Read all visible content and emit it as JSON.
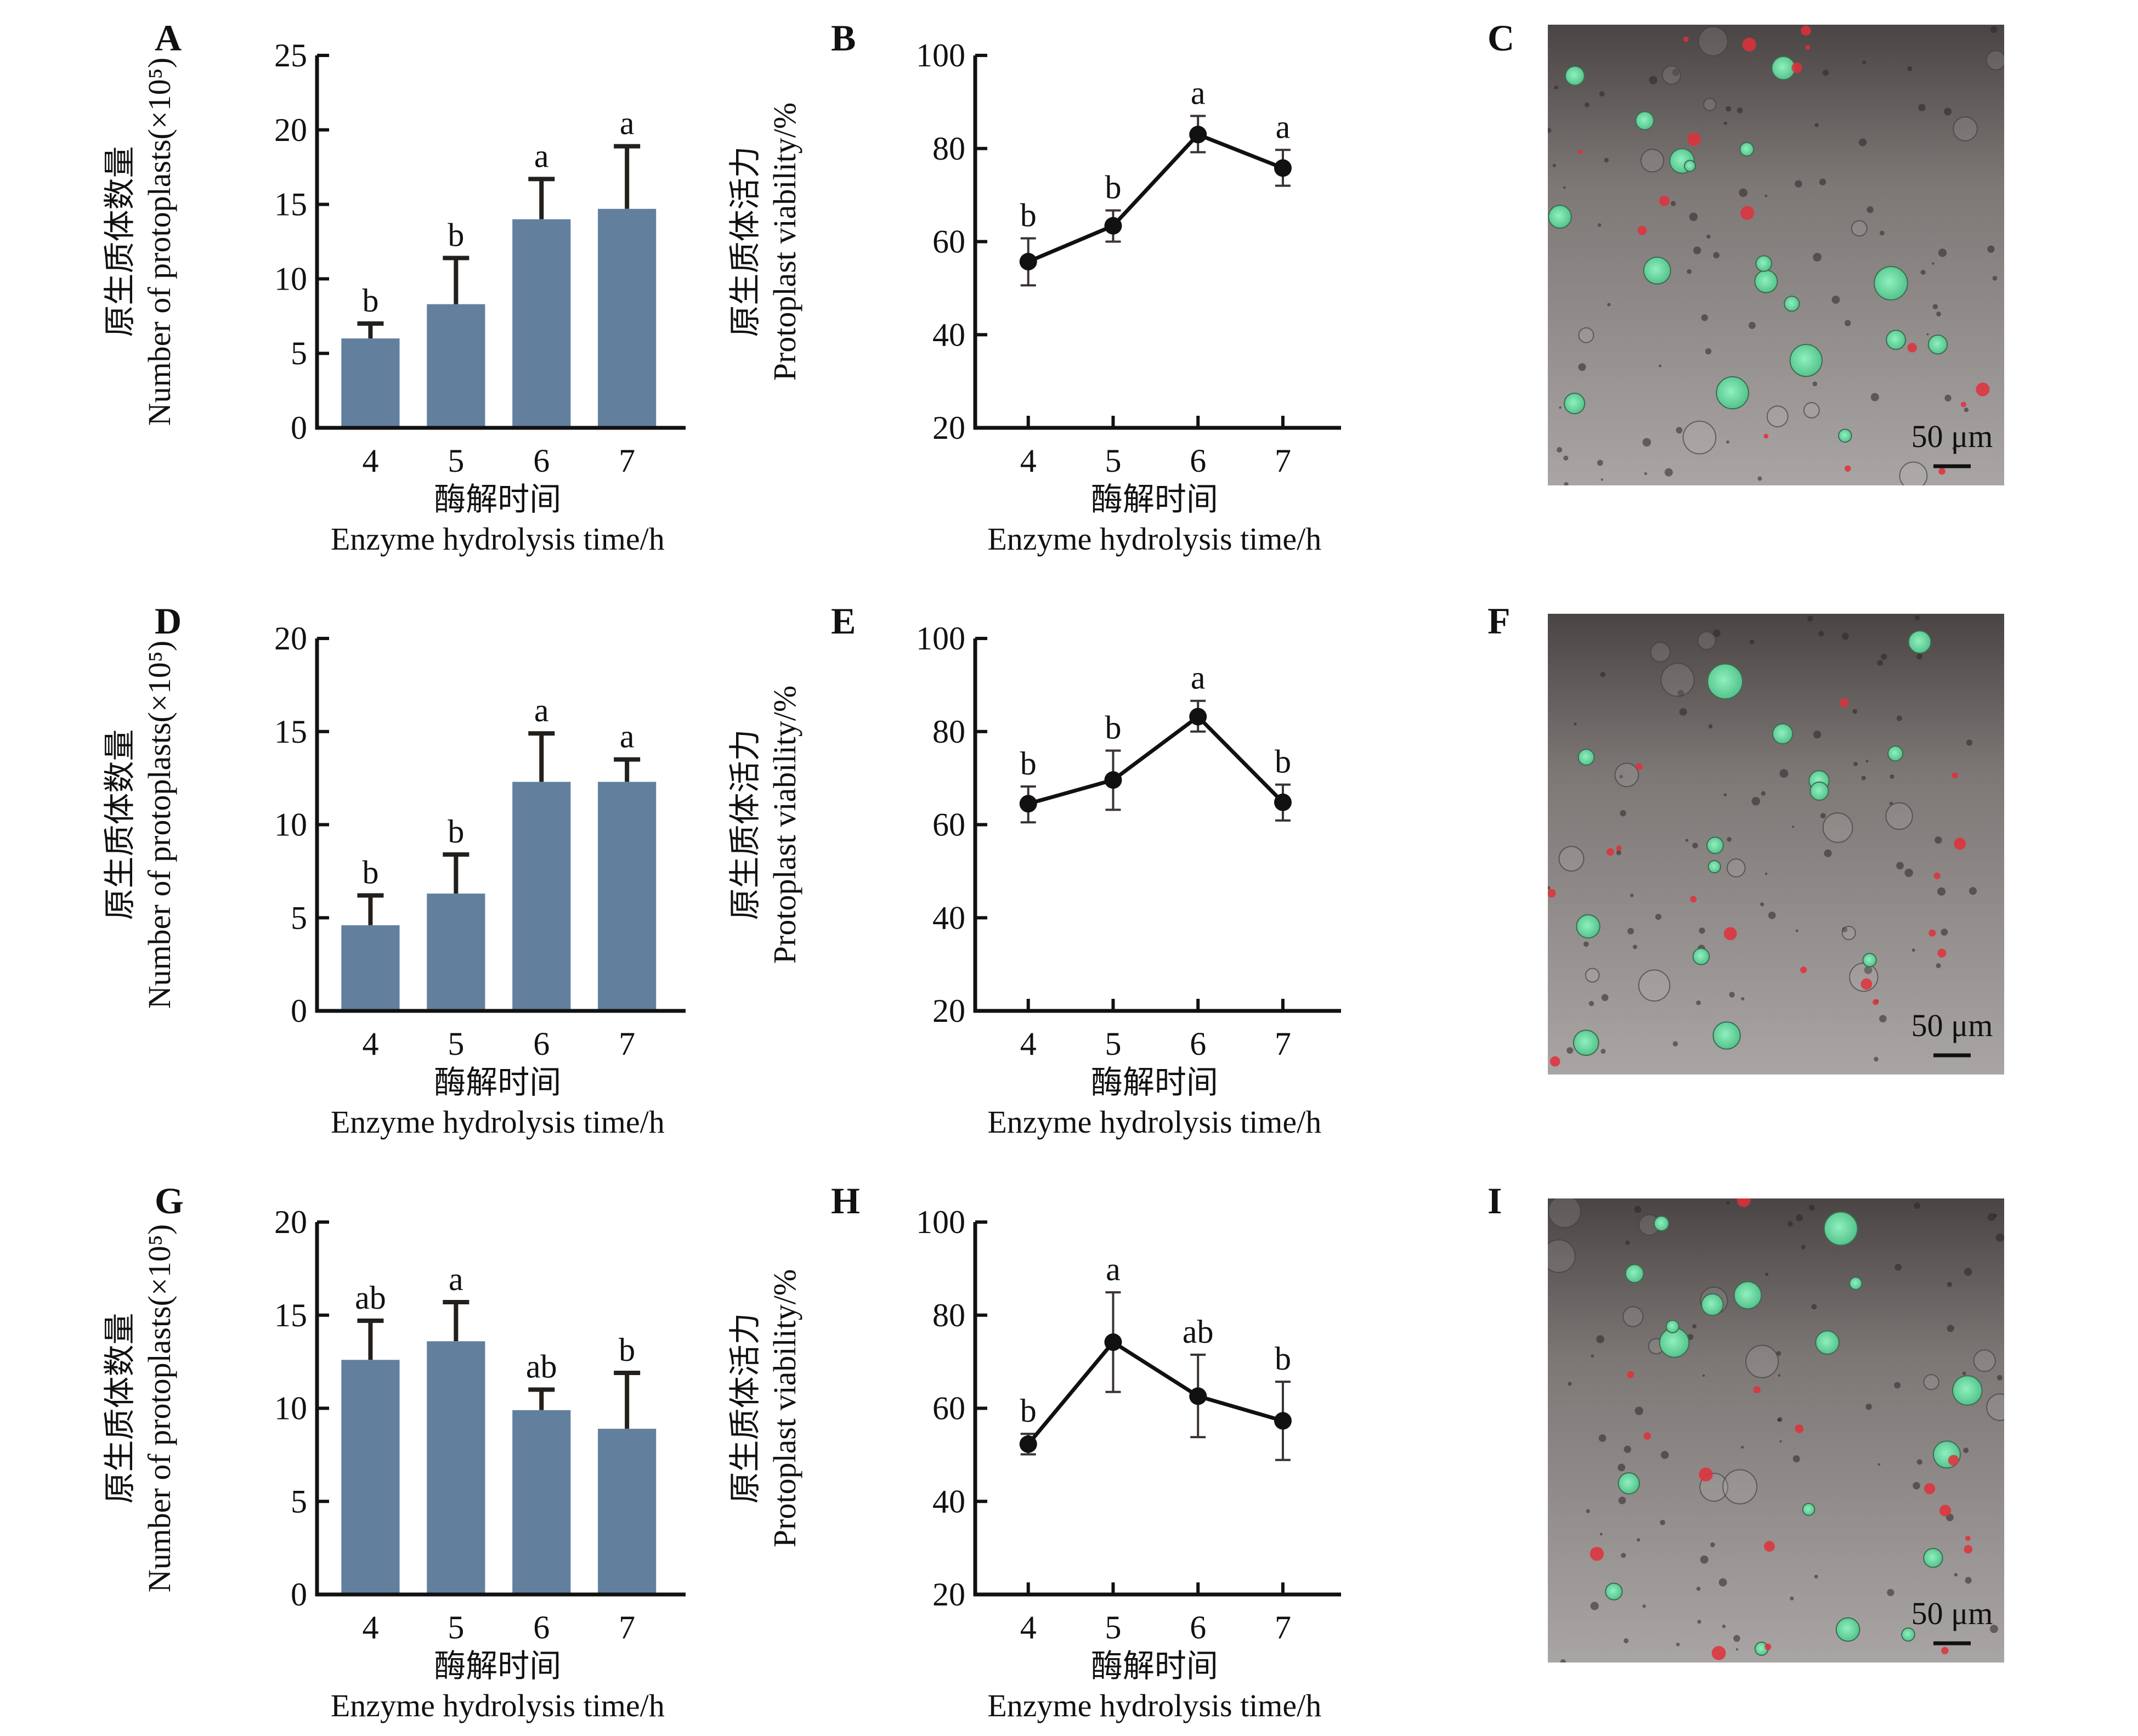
{
  "figure": {
    "panels": [
      "A",
      "B",
      "C",
      "D",
      "E",
      "F",
      "G",
      "H",
      "I"
    ],
    "micrographs": [
      {
        "letter": "C",
        "scale_bar": "50 μm"
      },
      {
        "letter": "F",
        "scale_bar": "50 μm"
      },
      {
        "letter": "I",
        "scale_bar": "50 μm"
      }
    ],
    "colors": {
      "bar": "#62809e",
      "line": "#111111",
      "live_cell": "#6fd6a0",
      "dead_cell": "#e0303a"
    }
  },
  "chart_data": [
    {
      "panel": "A",
      "type": "bar",
      "categories": [
        "4",
        "5",
        "6",
        "7"
      ],
      "values": [
        6.0,
        8.3,
        14.0,
        14.7
      ],
      "error_upper": [
        7.0,
        11.4,
        16.7,
        18.9
      ],
      "significance": [
        "b",
        "b",
        "a",
        "a"
      ],
      "ylim": [
        0,
        25
      ],
      "yticks": [
        0,
        5,
        10,
        15,
        20,
        25
      ],
      "ylabel_cn": "原生质体数量",
      "ylabel": "Number of protoplasts(×10⁵)",
      "xlabel_cn": "酶解时间",
      "xlabel": "Enzyme hydrolysis time/h"
    },
    {
      "panel": "B",
      "type": "line",
      "categories": [
        "4",
        "5",
        "6",
        "7"
      ],
      "values": [
        55.7,
        63.4,
        83.0,
        75.8
      ],
      "error_lower": [
        50.6,
        60.0,
        79.2,
        72.0
      ],
      "error_upper": [
        60.7,
        66.7,
        87.0,
        79.7
      ],
      "significance": [
        "b",
        "b",
        "a",
        "a"
      ],
      "ylim": [
        20,
        100
      ],
      "yticks": [
        20,
        40,
        60,
        80,
        100
      ],
      "ylabel_cn": "原生质体活力",
      "ylabel": "Protoplast viability/%",
      "xlabel_cn": "酶解时间",
      "xlabel": "Enzyme hydrolysis time/h"
    },
    {
      "panel": "D",
      "type": "bar",
      "categories": [
        "4",
        "5",
        "6",
        "7"
      ],
      "values": [
        4.6,
        6.3,
        12.3,
        12.3
      ],
      "error_upper": [
        6.2,
        8.4,
        14.9,
        13.5
      ],
      "significance": [
        "b",
        "b",
        "a",
        "a"
      ],
      "ylim": [
        0,
        20
      ],
      "yticks": [
        0,
        5,
        10,
        15,
        20
      ],
      "ylabel_cn": "原生质体数量",
      "ylabel": "Number of protoplasts(×10⁵)",
      "xlabel_cn": "酶解时间",
      "xlabel": "Enzyme hydrolysis time/h"
    },
    {
      "panel": "E",
      "type": "line",
      "categories": [
        "4",
        "5",
        "6",
        "7"
      ],
      "values": [
        64.5,
        69.6,
        83.2,
        64.8
      ],
      "error_lower": [
        60.5,
        63.2,
        80.0,
        60.9
      ],
      "error_upper": [
        68.2,
        75.9,
        86.6,
        68.6
      ],
      "significance": [
        "b",
        "b",
        "a",
        "b"
      ],
      "ylim": [
        20,
        100
      ],
      "yticks": [
        20,
        40,
        60,
        80,
        100
      ],
      "ylabel_cn": "原生质体活力",
      "ylabel": "Protoplast viability/%",
      "xlabel_cn": "酶解时间",
      "xlabel": "Enzyme hydrolysis time/h"
    },
    {
      "panel": "G",
      "type": "bar",
      "categories": [
        "4",
        "5",
        "6",
        "7"
      ],
      "values": [
        12.6,
        13.6,
        9.9,
        8.9
      ],
      "error_upper": [
        14.7,
        15.7,
        11.0,
        11.9
      ],
      "significance": [
        "ab",
        "a",
        "ab",
        "b"
      ],
      "ylim": [
        0,
        20
      ],
      "yticks": [
        0,
        5,
        10,
        15,
        20
      ],
      "ylabel_cn": "原生质体数量",
      "ylabel": "Number of protoplasts(×10⁵)",
      "xlabel_cn": "酶解时间",
      "xlabel": "Enzyme hydrolysis time/h"
    },
    {
      "panel": "H",
      "type": "line",
      "categories": [
        "4",
        "5",
        "6",
        "7"
      ],
      "values": [
        52.3,
        74.2,
        62.6,
        57.3
      ],
      "error_lower": [
        50.1,
        63.5,
        53.8,
        48.9
      ],
      "error_upper": [
        54.5,
        84.9,
        71.5,
        65.7
      ],
      "significance": [
        "b",
        "a",
        "ab",
        "b"
      ],
      "ylim": [
        20,
        100
      ],
      "yticks": [
        20,
        40,
        60,
        80,
        100
      ],
      "ylabel_cn": "原生质体活力",
      "ylabel": "Protoplast viability/%",
      "xlabel_cn": "酶解时间",
      "xlabel": "Enzyme hydrolysis time/h"
    }
  ]
}
